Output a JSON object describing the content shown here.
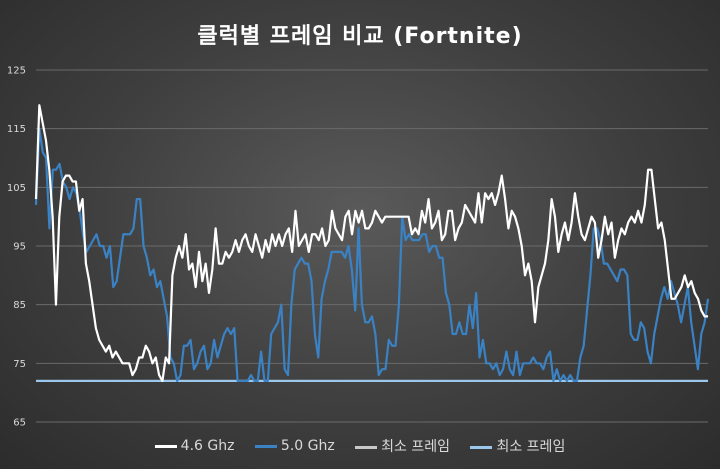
{
  "colors": {
    "series_white": "#ffffff",
    "series_blue": "#3a82c4",
    "min_gray": "#c8c8c8",
    "min_blue": "#9cc7ec",
    "grid": "#6a6a6a"
  },
  "chart_data": {
    "type": "line",
    "title": "클럭별 프레임 비교 (Fortnite)",
    "xlabel": "",
    "ylabel": "",
    "ylim": [
      65,
      125
    ],
    "yticks": [
      65,
      75,
      85,
      95,
      105,
      115,
      125
    ],
    "grid": "horizontal",
    "legend_position": "bottom",
    "series": [
      {
        "name": "4.6 Ghz",
        "values": [
          103,
          119,
          116,
          113,
          108,
          100,
          85,
          100,
          106,
          107,
          107,
          106,
          106,
          101,
          103,
          92,
          89,
          85,
          81,
          79,
          78,
          77,
          78,
          76,
          77,
          76,
          75,
          75,
          75,
          73,
          74,
          76,
          76,
          78,
          77,
          75,
          76,
          73,
          72,
          76,
          75,
          90,
          93,
          95,
          93,
          97,
          91,
          92,
          88,
          94,
          89,
          92,
          87,
          91,
          98,
          92,
          92,
          94,
          93,
          94,
          96,
          94,
          96,
          97,
          95,
          94,
          97,
          95,
          93,
          96,
          94,
          97,
          95,
          97,
          95,
          97,
          98,
          94,
          101,
          95,
          96,
          97,
          94,
          97,
          97,
          96,
          98,
          95,
          96,
          101,
          98,
          97,
          96,
          100,
          101,
          97,
          101,
          99,
          101,
          98,
          98,
          99,
          101,
          100,
          99,
          100,
          100,
          100,
          100,
          100,
          100,
          100,
          100,
          97,
          98,
          97,
          101,
          99,
          103,
          98,
          99,
          101,
          96,
          97,
          101,
          101,
          96,
          98,
          99,
          102,
          101,
          100,
          99,
          104,
          99,
          104,
          103,
          104,
          102,
          104,
          107,
          103,
          98,
          101,
          100,
          98,
          95,
          90,
          92,
          89,
          82,
          88,
          90,
          92,
          96,
          103,
          100,
          94,
          97,
          99,
          96,
          99,
          104,
          100,
          97,
          96,
          98,
          100,
          99,
          93,
          96,
          100,
          97,
          99,
          93,
          96,
          98,
          97,
          99,
          100,
          99,
          101,
          99,
          102,
          108,
          108,
          103,
          98,
          99,
          96,
          91,
          86,
          86,
          87,
          88,
          90,
          88,
          89,
          87,
          86,
          84,
          83,
          83
        ]
      },
      {
        "name": "5.0 Ghz",
        "values": [
          102,
          115,
          111,
          110,
          98,
          108,
          108,
          109,
          106,
          105,
          103,
          105,
          104,
          101,
          97,
          94,
          95,
          96,
          97,
          95,
          95,
          93,
          95,
          88,
          89,
          93,
          97,
          97,
          97,
          98,
          103,
          103,
          95,
          93,
          90,
          91,
          88,
          89,
          86,
          83,
          76,
          75,
          72,
          73,
          78,
          78,
          79,
          74,
          75,
          77,
          78,
          74,
          75,
          79,
          76,
          78,
          80,
          81,
          80,
          81,
          72,
          72,
          72,
          72,
          73,
          72,
          72,
          77,
          72,
          72,
          80,
          81,
          82,
          85,
          74,
          73,
          85,
          91,
          92,
          93,
          92,
          92,
          89,
          80,
          76,
          86,
          89,
          91,
          94,
          94,
          94,
          94,
          93,
          95,
          91,
          84,
          98,
          85,
          82,
          82,
          83,
          80,
          73,
          74,
          74,
          79,
          78,
          78,
          85,
          100,
          96,
          97,
          96,
          96,
          96,
          97,
          97,
          94,
          95,
          95,
          93,
          93,
          87,
          85,
          80,
          80,
          82,
          80,
          80,
          85,
          81,
          87,
          76,
          79,
          75,
          75,
          74,
          75,
          73,
          74,
          77,
          74,
          73,
          77,
          73,
          75,
          75,
          75,
          76,
          75,
          75,
          74,
          76,
          77,
          72,
          74,
          72,
          73,
          72,
          73,
          72,
          72,
          76,
          78,
          84,
          90,
          98,
          98,
          96,
          92,
          92,
          91,
          90,
          89,
          91,
          91,
          90,
          80,
          79,
          79,
          82,
          81,
          77,
          75,
          80,
          83,
          86,
          88,
          86,
          89,
          87,
          85,
          82,
          85,
          88,
          82,
          78,
          74,
          80,
          82,
          86
        ]
      },
      {
        "name": "최소 프레임",
        "values": [
          72,
          72
        ]
      },
      {
        "name": "최소 프레임",
        "values": [
          72,
          72
        ]
      }
    ]
  }
}
